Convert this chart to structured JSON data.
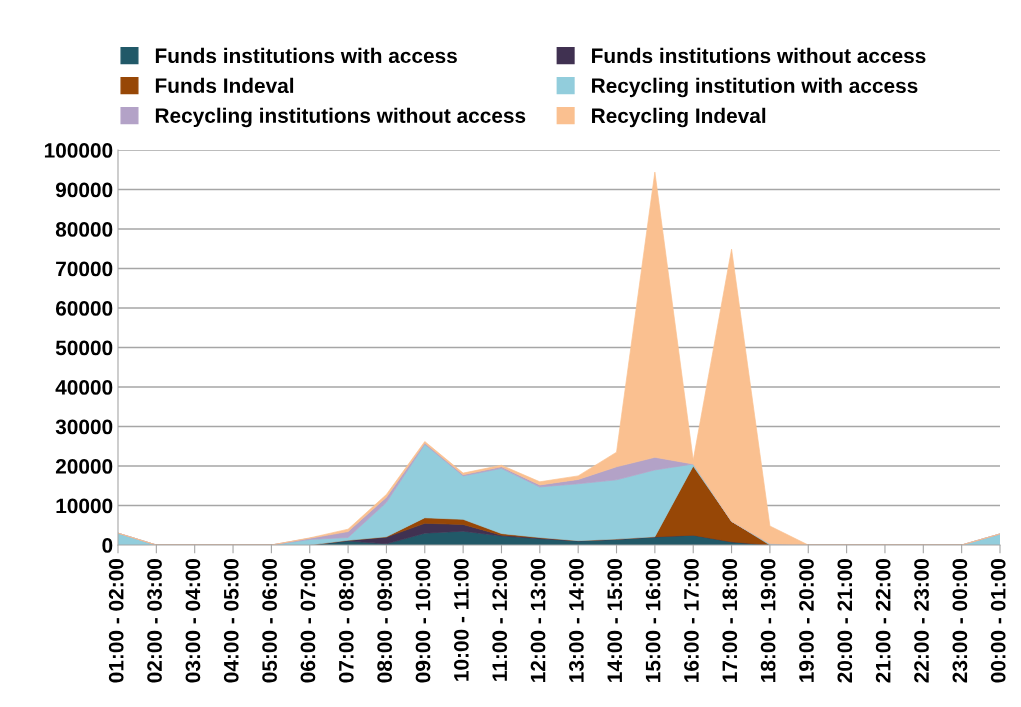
{
  "chart_data": {
    "type": "area",
    "stacked": true,
    "categories": [
      "01:00 - 02:00",
      "02:00 - 03:00",
      "03:00 - 04:00",
      "04:00 - 05:00",
      "05:00 - 06:00",
      "06:00 - 07:00",
      "07:00 - 08:00",
      "08:00 - 09:00",
      "09:00 - 10:00",
      "10:00 - 11:00",
      "11:00 - 12:00",
      "12:00 - 13:00",
      "13:00 - 14:00",
      "14:00 - 15:00",
      "15:00 - 16:00",
      "16:00 - 17:00",
      "17:00 - 18:00",
      "18:00 - 19:00",
      "19:00 - 20:00",
      "20:00 - 21:00",
      "21:00 - 22:00",
      "22:00 - 23:00",
      "23:00 - 00:00",
      "00:00 - 01:00"
    ],
    "series": [
      {
        "name": "Funds institutions with access",
        "color": "#215968",
        "values": [
          0,
          0,
          0,
          0,
          0,
          0,
          1000,
          300,
          3000,
          3500,
          2300,
          1600,
          1000,
          1400,
          2000,
          2500,
          800,
          0,
          0,
          0,
          0,
          0,
          0,
          0
        ]
      },
      {
        "name": "Funds institutions without access",
        "color": "#403151",
        "values": [
          0,
          0,
          0,
          0,
          0,
          0,
          200,
          1700,
          2500,
          1700,
          200,
          200,
          100,
          100,
          100,
          0,
          0,
          0,
          0,
          0,
          0,
          0,
          0,
          0
        ]
      },
      {
        "name": "Funds Indeval",
        "color": "#974706",
        "values": [
          0,
          0,
          0,
          0,
          0,
          0,
          0,
          100,
          1400,
          1300,
          400,
          100,
          0,
          0,
          0,
          17500,
          5200,
          0,
          0,
          0,
          0,
          0,
          0,
          0
        ]
      },
      {
        "name": "Recycling institution with access",
        "color": "#92cddc",
        "values": [
          3000,
          0,
          0,
          0,
          0,
          1400,
          700,
          8700,
          18600,
          11000,
          16500,
          12800,
          14400,
          15000,
          16900,
          500,
          0,
          300,
          0,
          0,
          0,
          0,
          0,
          2800
        ]
      },
      {
        "name": "Recycling institutions without access",
        "color": "#b3a2c7",
        "values": [
          0,
          0,
          0,
          0,
          0,
          300,
          1500,
          1300,
          300,
          300,
          400,
          500,
          1100,
          3300,
          3200,
          0,
          0,
          0,
          0,
          0,
          0,
          0,
          0,
          0
        ]
      },
      {
        "name": "Recycling Indeval",
        "color": "#fac090",
        "values": [
          0,
          0,
          0,
          0,
          0,
          100,
          600,
          700,
          400,
          400,
          400,
          800,
          900,
          3700,
          72200,
          1000,
          68900,
          4500,
          0,
          0,
          0,
          0,
          0,
          0
        ]
      }
    ],
    "ylim": [
      0,
      100000
    ],
    "yticks": [
      0,
      10000,
      20000,
      30000,
      40000,
      50000,
      60000,
      70000,
      80000,
      90000,
      100000
    ],
    "grid": "y",
    "legend": "top"
  }
}
